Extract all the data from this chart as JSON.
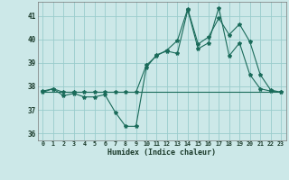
{
  "xlabel": "Humidex (Indice chaleur)",
  "ylabel": "",
  "bg_color": "#cce8e8",
  "grid_color": "#99cccc",
  "line_color": "#1a6b5a",
  "xlim": [
    -0.5,
    23.5
  ],
  "ylim": [
    35.7,
    41.6
  ],
  "yticks": [
    36,
    37,
    38,
    39,
    40,
    41
  ],
  "xticks": [
    0,
    1,
    2,
    3,
    4,
    5,
    6,
    7,
    8,
    9,
    10,
    11,
    12,
    13,
    14,
    15,
    16,
    17,
    18,
    19,
    20,
    21,
    22,
    23
  ],
  "series1_x": [
    0,
    1,
    2,
    3,
    4,
    5,
    6,
    7,
    8,
    9,
    10,
    11,
    12,
    13,
    14,
    15,
    16,
    17,
    18,
    19,
    20,
    21,
    22,
    23
  ],
  "series1_y": [
    37.8,
    37.9,
    37.6,
    37.7,
    37.55,
    37.55,
    37.65,
    36.9,
    36.3,
    36.3,
    38.8,
    39.35,
    39.5,
    39.4,
    41.25,
    39.6,
    39.85,
    41.35,
    39.3,
    39.85,
    38.5,
    37.9,
    37.8,
    37.75
  ],
  "series2_x": [
    0,
    1,
    2,
    3,
    4,
    5,
    6,
    7,
    8,
    9,
    10,
    11,
    12,
    13,
    14,
    15,
    16,
    17,
    18,
    19,
    20,
    21,
    22,
    23
  ],
  "series2_y": [
    37.75,
    37.75,
    37.75,
    37.75,
    37.75,
    37.75,
    37.75,
    37.75,
    37.75,
    37.75,
    37.75,
    37.75,
    37.75,
    37.75,
    37.75,
    37.75,
    37.75,
    37.75,
    37.75,
    37.75,
    37.75,
    37.75,
    37.75,
    37.75
  ],
  "series3_x": [
    0,
    1,
    2,
    3,
    4,
    5,
    6,
    7,
    8,
    9,
    10,
    11,
    12,
    13,
    14,
    15,
    16,
    17,
    18,
    19,
    20,
    21,
    22,
    23
  ],
  "series3_y": [
    37.75,
    37.9,
    37.75,
    37.75,
    37.75,
    37.75,
    37.75,
    37.75,
    37.75,
    37.75,
    38.9,
    39.3,
    39.55,
    39.95,
    41.3,
    39.8,
    40.1,
    40.9,
    40.2,
    40.65,
    39.9,
    38.5,
    37.85,
    37.75
  ]
}
